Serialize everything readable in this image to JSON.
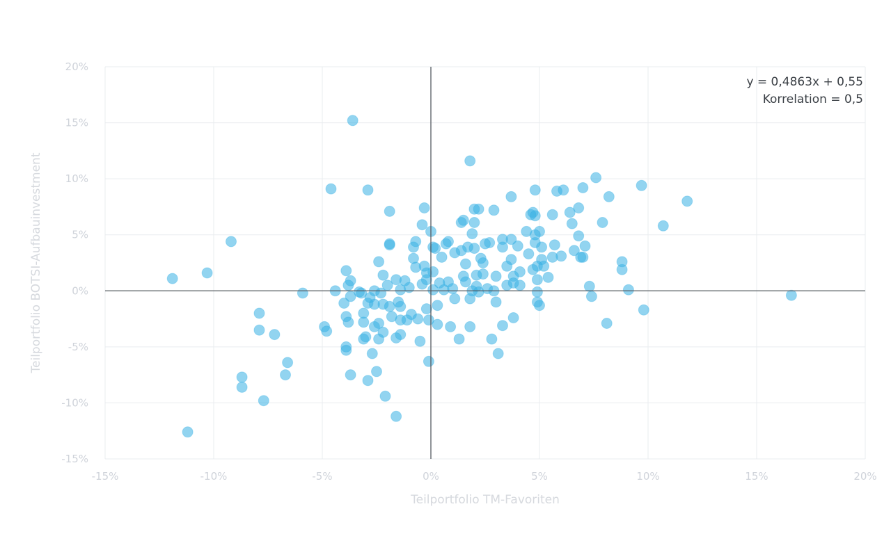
{
  "chart_data": {
    "type": "scatter",
    "xlabel": "Teilportfolio TM-Favoriten",
    "ylabel": "Teilportfolio BOTSI-Aufbauinvestment",
    "xlim": [
      -15,
      20
    ],
    "ylim": [
      -15,
      20
    ],
    "x_ticks": [
      "-15%",
      "-10%",
      "-5%",
      "0%",
      "5%",
      "10%",
      "15%",
      "20%"
    ],
    "y_ticks": [
      "20%",
      "15%",
      "10%",
      "5%",
      "0%",
      "-5%",
      "-10%",
      "-15%"
    ],
    "grid": true,
    "annotation": {
      "regression": "y = 0,4863x + 0,55",
      "correlation": "Korrelation = 0,5"
    },
    "color": "#38b1e4",
    "points": [
      [
        -11.9,
        1.1
      ],
      [
        -11.2,
        -12.6
      ],
      [
        -10.3,
        1.6
      ],
      [
        -9.2,
        4.4
      ],
      [
        -8.7,
        -7.7
      ],
      [
        -8.7,
        -8.6
      ],
      [
        -7.9,
        -2.0
      ],
      [
        -7.9,
        -3.5
      ],
      [
        -7.7,
        -9.8
      ],
      [
        -7.2,
        -3.9
      ],
      [
        -6.6,
        -6.4
      ],
      [
        -6.7,
        -7.5
      ],
      [
        -5.9,
        -0.2
      ],
      [
        -4.9,
        -3.2
      ],
      [
        -4.8,
        -3.6
      ],
      [
        -4.6,
        9.1
      ],
      [
        -4.4,
        0.0
      ],
      [
        -3.6,
        15.2
      ],
      [
        -3.9,
        1.8
      ],
      [
        -3.8,
        0.5
      ],
      [
        -3.7,
        0.9
      ],
      [
        -3.7,
        -0.5
      ],
      [
        -4.0,
        -1.1
      ],
      [
        -3.9,
        -2.3
      ],
      [
        -3.8,
        -2.8
      ],
      [
        -3.9,
        -5.0
      ],
      [
        -3.9,
        -5.3
      ],
      [
        -3.7,
        -7.5
      ],
      [
        -3.3,
        -0.1
      ],
      [
        -3.2,
        -0.2
      ],
      [
        -3.1,
        -2.0
      ],
      [
        -3.1,
        -2.8
      ],
      [
        -3.1,
        -4.3
      ],
      [
        -3.0,
        -4.1
      ],
      [
        -2.9,
        9.0
      ],
      [
        -2.9,
        -1.1
      ],
      [
        -2.8,
        -0.6
      ],
      [
        -2.6,
        -1.2
      ],
      [
        -2.9,
        -8.0
      ],
      [
        -2.6,
        0.0
      ],
      [
        -2.6,
        -3.2
      ],
      [
        -2.7,
        -5.6
      ],
      [
        -2.5,
        -7.2
      ],
      [
        -2.4,
        -2.9
      ],
      [
        -2.4,
        -4.3
      ],
      [
        -2.4,
        2.6
      ],
      [
        -2.3,
        -0.2
      ],
      [
        -2.2,
        1.4
      ],
      [
        -2.2,
        -1.2
      ],
      [
        -2.2,
        -3.7
      ],
      [
        -2.0,
        0.5
      ],
      [
        -2.1,
        -9.4
      ],
      [
        -1.9,
        7.1
      ],
      [
        -1.9,
        4.2
      ],
      [
        -1.9,
        4.1
      ],
      [
        -1.9,
        -1.4
      ],
      [
        -1.8,
        -2.3
      ],
      [
        -1.6,
        -11.2
      ],
      [
        -1.6,
        1.0
      ],
      [
        -1.5,
        -1.0
      ],
      [
        -1.6,
        -4.2
      ],
      [
        -1.4,
        0.1
      ],
      [
        -1.4,
        -1.4
      ],
      [
        -1.4,
        -2.6
      ],
      [
        -1.4,
        -3.9
      ],
      [
        -1.2,
        0.9
      ],
      [
        -1.1,
        -2.6
      ],
      [
        -1.0,
        0.3
      ],
      [
        -0.9,
        -2.1
      ],
      [
        -0.8,
        3.9
      ],
      [
        -0.8,
        2.9
      ],
      [
        -0.7,
        4.4
      ],
      [
        -0.7,
        2.1
      ],
      [
        -0.6,
        -2.5
      ],
      [
        -0.5,
        -4.5
      ],
      [
        -0.4,
        5.9
      ],
      [
        -0.4,
        0.6
      ],
      [
        -0.3,
        7.4
      ],
      [
        -0.3,
        2.2
      ],
      [
        -0.2,
        1.6
      ],
      [
        -0.2,
        1.0
      ],
      [
        -0.2,
        -1.6
      ],
      [
        -0.1,
        -2.6
      ],
      [
        -0.1,
        -6.3
      ],
      [
        0.0,
        5.3
      ],
      [
        0.1,
        3.9
      ],
      [
        0.1,
        1.7
      ],
      [
        0.1,
        0.1
      ],
      [
        0.2,
        3.8
      ],
      [
        0.3,
        -1.3
      ],
      [
        0.3,
        -3.0
      ],
      [
        0.5,
        3.0
      ],
      [
        0.4,
        0.7
      ],
      [
        0.6,
        0.1
      ],
      [
        0.7,
        4.2
      ],
      [
        0.8,
        4.4
      ],
      [
        0.8,
        0.8
      ],
      [
        0.9,
        -3.2
      ],
      [
        1.0,
        0.2
      ],
      [
        1.1,
        -0.7
      ],
      [
        1.1,
        3.4
      ],
      [
        1.3,
        -4.3
      ],
      [
        1.4,
        6.1
      ],
      [
        1.5,
        6.3
      ],
      [
        1.4,
        3.6
      ],
      [
        1.5,
        1.3
      ],
      [
        1.6,
        0.8
      ],
      [
        1.8,
        11.6
      ],
      [
        1.6,
        2.4
      ],
      [
        1.7,
        3.9
      ],
      [
        1.9,
        5.1
      ],
      [
        1.9,
        0.0
      ],
      [
        1.8,
        -0.7
      ],
      [
        1.8,
        -3.2
      ],
      [
        2.0,
        7.3
      ],
      [
        2.0,
        6.1
      ],
      [
        2.0,
        3.8
      ],
      [
        2.1,
        1.4
      ],
      [
        2.1,
        0.4
      ],
      [
        2.2,
        -0.1
      ],
      [
        2.2,
        7.3
      ],
      [
        2.3,
        2.9
      ],
      [
        2.4,
        2.5
      ],
      [
        2.4,
        1.5
      ],
      [
        2.5,
        4.2
      ],
      [
        2.6,
        0.2
      ],
      [
        2.7,
        4.3
      ],
      [
        2.8,
        -4.3
      ],
      [
        2.9,
        7.2
      ],
      [
        2.9,
        0.0
      ],
      [
        3.0,
        1.3
      ],
      [
        3.0,
        -1.0
      ],
      [
        3.1,
        -5.6
      ],
      [
        3.3,
        4.6
      ],
      [
        3.3,
        3.9
      ],
      [
        3.3,
        -3.1
      ],
      [
        3.5,
        0.5
      ],
      [
        3.5,
        2.2
      ],
      [
        3.7,
        8.4
      ],
      [
        3.7,
        4.6
      ],
      [
        3.7,
        2.8
      ],
      [
        3.8,
        1.3
      ],
      [
        3.8,
        0.7
      ],
      [
        3.8,
        -2.4
      ],
      [
        4.0,
        4.0
      ],
      [
        4.1,
        1.7
      ],
      [
        4.1,
        0.5
      ],
      [
        4.4,
        5.3
      ],
      [
        4.5,
        3.3
      ],
      [
        4.6,
        6.8
      ],
      [
        4.7,
        7.0
      ],
      [
        4.7,
        1.9
      ],
      [
        4.8,
        9.0
      ],
      [
        4.8,
        6.7
      ],
      [
        4.8,
        5.0
      ],
      [
        4.8,
        4.3
      ],
      [
        4.9,
        2.2
      ],
      [
        4.9,
        1.0
      ],
      [
        4.9,
        -0.1
      ],
      [
        4.9,
        -1.0
      ],
      [
        5.0,
        5.3
      ],
      [
        5.1,
        3.9
      ],
      [
        5.1,
        2.8
      ],
      [
        5.0,
        -1.3
      ],
      [
        5.2,
        2.2
      ],
      [
        5.4,
        1.2
      ],
      [
        5.6,
        6.8
      ],
      [
        5.6,
        3.0
      ],
      [
        5.7,
        4.1
      ],
      [
        5.8,
        8.9
      ],
      [
        6.1,
        9.0
      ],
      [
        6.0,
        3.1
      ],
      [
        6.4,
        7.0
      ],
      [
        6.5,
        6.0
      ],
      [
        6.6,
        3.6
      ],
      [
        6.8,
        7.4
      ],
      [
        6.8,
        4.9
      ],
      [
        6.9,
        3.0
      ],
      [
        7.0,
        9.2
      ],
      [
        7.0,
        3.0
      ],
      [
        7.1,
        4.0
      ],
      [
        7.3,
        0.4
      ],
      [
        7.4,
        -0.5
      ],
      [
        7.6,
        10.1
      ],
      [
        7.9,
        6.1
      ],
      [
        8.1,
        -2.9
      ],
      [
        8.2,
        8.4
      ],
      [
        8.8,
        1.9
      ],
      [
        8.8,
        2.6
      ],
      [
        9.1,
        0.1
      ],
      [
        9.7,
        9.4
      ],
      [
        9.8,
        -1.7
      ],
      [
        10.7,
        5.8
      ],
      [
        11.8,
        8.0
      ],
      [
        16.6,
        -0.4
      ]
    ]
  }
}
